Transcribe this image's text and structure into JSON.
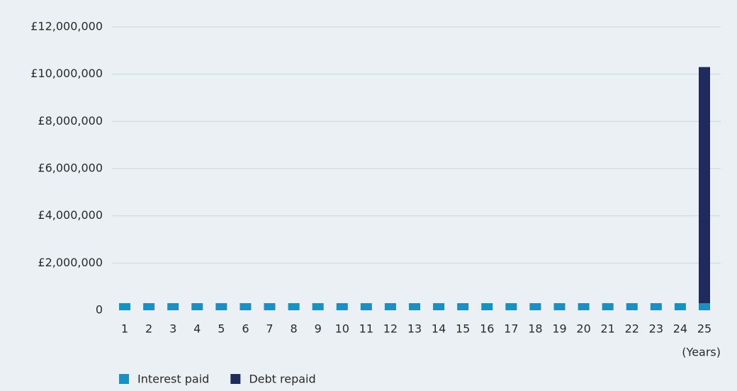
{
  "chart_data": {
    "type": "stacked_bar",
    "categories": [
      "1",
      "2",
      "3",
      "4",
      "5",
      "6",
      "7",
      "8",
      "9",
      "10",
      "11",
      "12",
      "13",
      "14",
      "15",
      "16",
      "17",
      "18",
      "19",
      "20",
      "21",
      "22",
      "23",
      "24",
      "25"
    ],
    "series": [
      {
        "name": "Interest paid",
        "color": "#1a8fc0",
        "values": [
          300000,
          300000,
          300000,
          300000,
          300000,
          300000,
          300000,
          300000,
          300000,
          300000,
          300000,
          300000,
          300000,
          300000,
          300000,
          300000,
          300000,
          300000,
          300000,
          300000,
          300000,
          300000,
          300000,
          300000,
          300000
        ]
      },
      {
        "name": "Debt repaid",
        "color": "#1e2b5c",
        "values": [
          0,
          0,
          0,
          0,
          0,
          0,
          0,
          0,
          0,
          0,
          0,
          0,
          0,
          0,
          0,
          0,
          0,
          0,
          0,
          0,
          0,
          0,
          0,
          0,
          10000000
        ]
      }
    ],
    "x_label": "(Years)",
    "ylim": [
      0,
      12000000
    ],
    "yticks": [
      0,
      {
        "value": 2000000,
        "label": "£2,000,000"
      },
      {
        "value": 4000000,
        "label": "£4,000,000"
      },
      {
        "value": 6000000,
        "label": "£6,000,000"
      },
      {
        "value": 8000000,
        "label": "£8,000,000"
      },
      {
        "value": 10000000,
        "label": "£10,000,000"
      },
      {
        "value": 12000000,
        "label": "£12,000,000"
      }
    ],
    "grid": true,
    "legend": "bottom-left"
  }
}
